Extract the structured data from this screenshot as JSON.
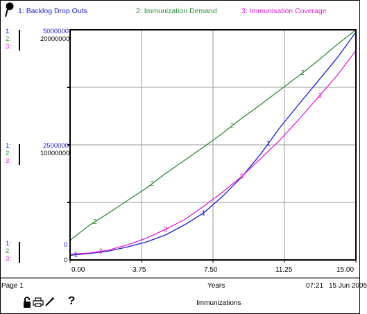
{
  "colors": {
    "series1": "#1a1ad6",
    "series2": "#2e8b3c",
    "series3": "#e020d0",
    "grid": "#9a9a9a",
    "frame": "#000000"
  },
  "legend": [
    {
      "number": "1:",
      "label": "Backlog Drop Outs"
    },
    {
      "number": "2:",
      "label": "Immunization Demand"
    },
    {
      "number": "3:",
      "label": "Immunisation Coverage"
    }
  ],
  "scales": {
    "top": {
      "s1": "5000000",
      "s2": "20000000"
    },
    "middle": {
      "s1": "2500000",
      "s2": "10000000"
    },
    "bottom": {
      "s1": "0",
      "s2": "0"
    },
    "prefix1": "1:",
    "prefix2": "2:",
    "prefix3": "3:"
  },
  "footer": {
    "page": "Page 1",
    "xlabel": "Years",
    "time": "07:21",
    "date": "15 Jun 2005",
    "title": "Immunizations",
    "icons": [
      "lock-icon",
      "printer-icon",
      "magic-wand-icon",
      "help-icon"
    ],
    "help_glyph": "?"
  },
  "chart_data": {
    "type": "line",
    "title": "Immunizations",
    "xlabel": "Years",
    "x_ticks": [
      "0.00",
      "3.75",
      "7.50",
      "11.25",
      "15.00"
    ],
    "xlim": [
      0,
      15
    ],
    "grid": true,
    "legend_position": "top",
    "series": [
      {
        "name": "Backlog Drop Outs",
        "number": "1",
        "ylim": [
          0,
          5000000
        ],
        "x": [
          0,
          1,
          2,
          3,
          4,
          5,
          6,
          7,
          8,
          9,
          10,
          11,
          12,
          13,
          14,
          15
        ],
        "values": [
          100000,
          140000,
          190000,
          280000,
          390000,
          540000,
          760000,
          1020000,
          1380000,
          1800000,
          2300000,
          2870000,
          3380000,
          3880000,
          4380000,
          4950000
        ]
      },
      {
        "name": "Immunization Demand",
        "number": "2",
        "ylim": [
          0,
          20000000
        ],
        "x": [
          0,
          1,
          2,
          3,
          4,
          5,
          6,
          7,
          8,
          9,
          10,
          11,
          12,
          13,
          14,
          15
        ],
        "values": [
          1700000,
          3000000,
          4050000,
          5150000,
          6250000,
          7500000,
          8650000,
          9800000,
          11000000,
          12300000,
          13500000,
          14750000,
          16000000,
          17300000,
          18700000,
          20400000
        ]
      },
      {
        "name": "Immunisation Coverage",
        "number": "3",
        "ylim": [
          0,
          20000000
        ],
        "x": [
          0,
          1,
          2,
          3,
          4,
          5,
          6,
          7,
          8,
          9,
          10,
          11,
          12,
          13,
          14,
          15
        ],
        "values": [
          500000,
          600000,
          850000,
          1300000,
          1900000,
          2650000,
          3500000,
          4650000,
          5900000,
          7250000,
          8800000,
          10400000,
          12200000,
          14100000,
          16000000,
          18200000
        ]
      }
    ]
  }
}
